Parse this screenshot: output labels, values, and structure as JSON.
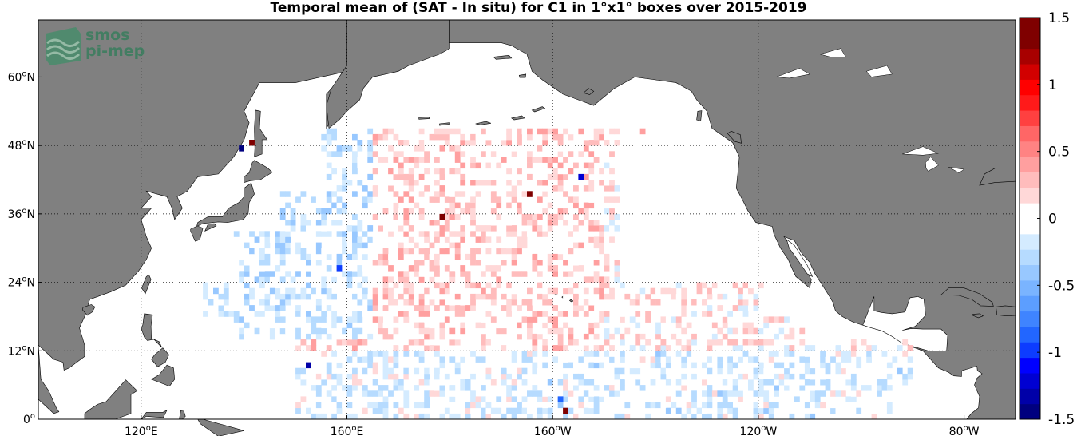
{
  "title": "Temporal mean of (SAT - In situ) for C1 in 1°x1° boxes over 2015-2019",
  "logo": {
    "line1": "smos",
    "line2": "pi-mep"
  },
  "map": {
    "lon_range": [
      100,
      290
    ],
    "lat_range": [
      0,
      70
    ],
    "land_color": "#808080",
    "ocean_color": "#ffffff",
    "x_ticks": [
      {
        "lon": 120,
        "label": "120°E"
      },
      {
        "lon": 160,
        "label": "160°E"
      },
      {
        "lon": 200,
        "label": "160°W"
      },
      {
        "lon": 240,
        "label": "120°W"
      },
      {
        "lon": 280,
        "label": "80°W"
      }
    ],
    "y_ticks": [
      {
        "lat": 0,
        "label": "0°"
      },
      {
        "lat": 12,
        "label": "12°N"
      },
      {
        "lat": 24,
        "label": "24°N"
      },
      {
        "lat": 36,
        "label": "36°N"
      },
      {
        "lat": 48,
        "label": "48°N"
      },
      {
        "lat": 60,
        "label": "60°N"
      }
    ],
    "grid": true
  },
  "colorbar": {
    "min": -1.5,
    "max": 1.5,
    "ticks": [
      {
        "value": 1.5,
        "label": "1.5"
      },
      {
        "value": 1,
        "label": "1"
      },
      {
        "value": 0.5,
        "label": "0.5"
      },
      {
        "value": 0,
        "label": "0"
      },
      {
        "value": -0.5,
        "label": "-0.5"
      },
      {
        "value": -1,
        "label": "-1"
      },
      {
        "value": -1.5,
        "label": "-1.5"
      }
    ],
    "colors": [
      "#00007f",
      "#0000a8",
      "#0000d2",
      "#0000ff",
      "#0d3cff",
      "#2266ff",
      "#3f84ff",
      "#5c9eff",
      "#7ab4ff",
      "#98c8ff",
      "#b6dbff",
      "#d4ebff",
      "#ffffff",
      "#ffffff",
      "#ffd8d8",
      "#ffbcbc",
      "#ff9f9f",
      "#ff8383",
      "#ff6666",
      "#ff4040",
      "#ff1a1a",
      "#ff0000",
      "#d20000",
      "#a80000",
      "#7f0000",
      "#7f0000"
    ]
  },
  "chart_data": {
    "type": "heatmap",
    "title": "Temporal mean of (SAT - In situ) for C1 in 1°x1° boxes over 2015-2019",
    "xlabel": "",
    "ylabel": "",
    "x_range_lon": [
      100,
      290
    ],
    "y_range_lat": [
      0,
      70
    ],
    "value_range": [
      -1.5,
      1.5
    ],
    "cell_size_deg": 1,
    "coverage": "North Pacific, approx. 0°–50°N, 140°E–110°W",
    "regions_mean_sign": [
      {
        "region": "west (140°E–165°E, 20°N–40°N)",
        "typical_value": -0.15
      },
      {
        "region": "central (165°E–150°W)",
        "typical_value": 0.15
      },
      {
        "region": "east (150°W–115°W)",
        "typical_value": 0.05
      },
      {
        "region": "tropical band (0°–12°N)",
        "typical_value": -0.1
      }
    ],
    "extremes": [
      {
        "lon": 139.5,
        "lat": 47.5,
        "value": -1.5
      },
      {
        "lon": 141.5,
        "lat": 48.5,
        "value": 1.4
      },
      {
        "lon": 217.5,
        "lat": 50.5,
        "value": 0.4
      },
      {
        "lon": 178.5,
        "lat": 35.5,
        "value": 1.3
      },
      {
        "lon": 195.5,
        "lat": 39.5,
        "value": 1.3
      },
      {
        "lon": 152.5,
        "lat": 9.5,
        "value": -1.3
      },
      {
        "lon": 202.5,
        "lat": 1.5,
        "value": 1.4
      },
      {
        "lon": 201.5,
        "lat": 3.5,
        "value": -0.9
      },
      {
        "lon": 158.5,
        "lat": 26.5,
        "value": -1.0
      },
      {
        "lon": 205.5,
        "lat": 42.5,
        "value": -1.2
      }
    ]
  }
}
